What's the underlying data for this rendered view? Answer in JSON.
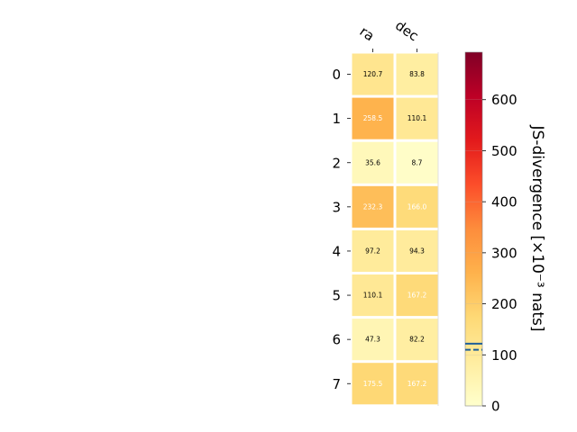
{
  "chart_data": {
    "type": "heatmap",
    "columns": [
      "ra",
      "dec"
    ],
    "rows": [
      "0",
      "1",
      "2",
      "3",
      "4",
      "5",
      "6",
      "7"
    ],
    "values": [
      [
        120.7,
        83.8
      ],
      [
        258.5,
        110.1
      ],
      [
        35.6,
        8.7
      ],
      [
        232.3,
        166.0
      ],
      [
        97.2,
        94.3
      ],
      [
        110.1,
        167.2
      ],
      [
        47.3,
        82.2
      ],
      [
        175.5,
        167.2
      ]
    ],
    "value_labels": [
      [
        "120.7",
        "83.8"
      ],
      [
        "258.5",
        "110.1"
      ],
      [
        "35.6",
        "8.7"
      ],
      [
        "232.3",
        "166.0"
      ],
      [
        "97.2",
        "94.3"
      ],
      [
        "110.1",
        "167.2"
      ],
      [
        "47.3",
        "82.2"
      ],
      [
        "175.5",
        "167.2"
      ]
    ],
    "colorbar": {
      "title": "JS-divergence [×10⁻³ nats]",
      "range": [
        0,
        693
      ],
      "ticks": [
        0,
        100,
        200,
        300,
        400,
        500,
        600
      ],
      "tick_labels": [
        "0",
        "100",
        "200",
        "300",
        "400",
        "500",
        "600"
      ],
      "colormap": "YlOrRd",
      "solid_line_value": 122,
      "dashed_line_value": 110
    }
  },
  "colors": {
    "solid_line": "#1f5f99",
    "dashed_line": "#1f5f99",
    "light_text": "#ffffff",
    "dark_text": "#000000"
  }
}
